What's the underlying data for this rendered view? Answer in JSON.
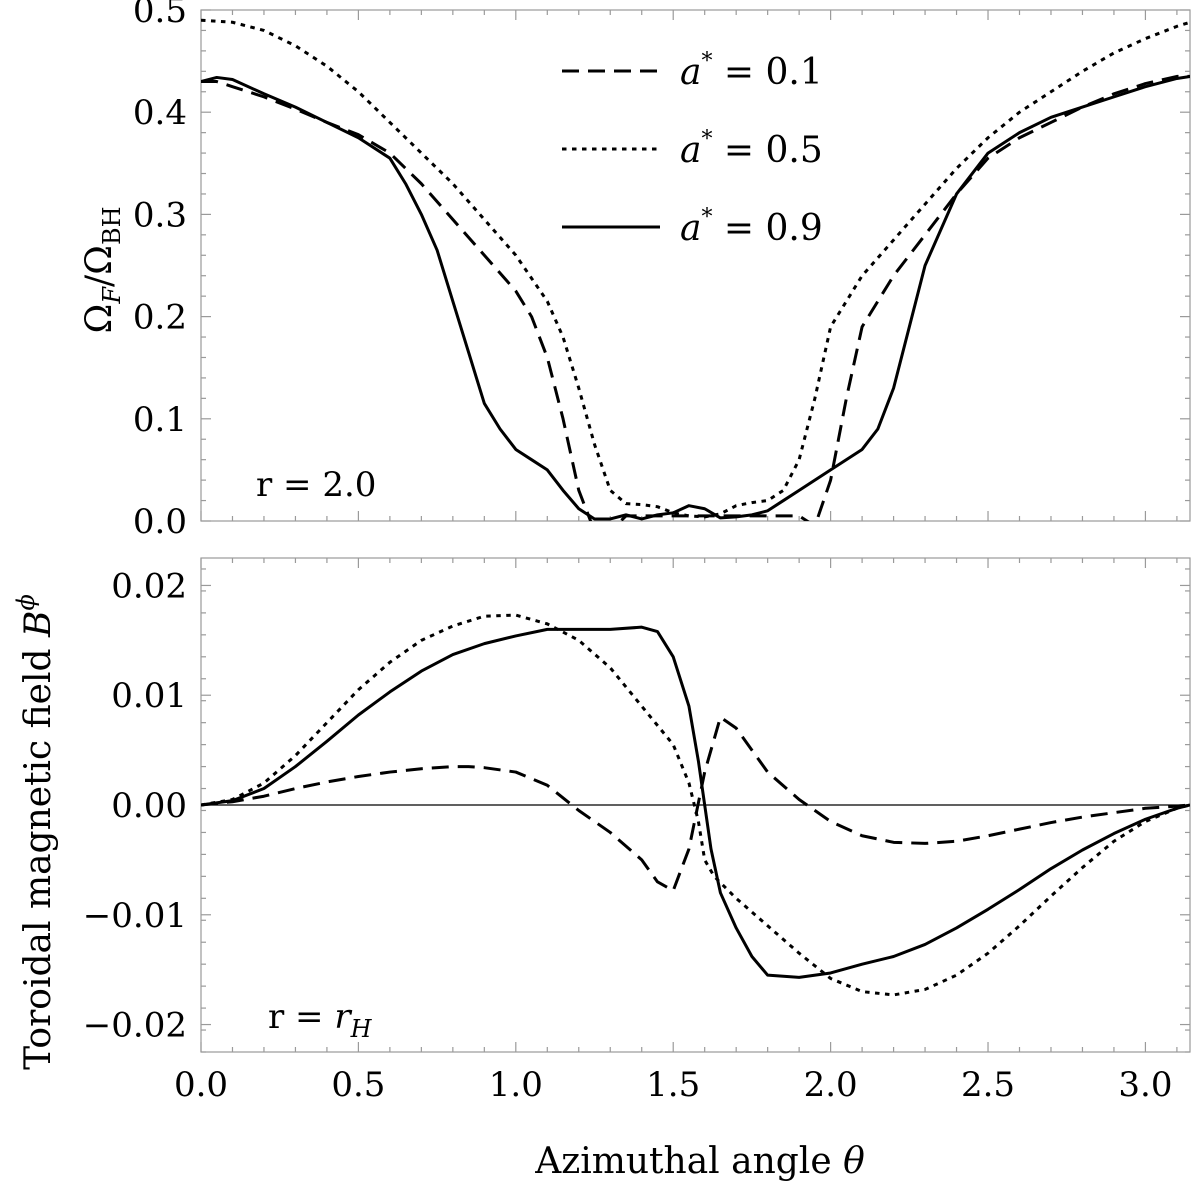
{
  "chart_data": [
    {
      "type": "line",
      "panel": "top",
      "title": "",
      "xlabel": "",
      "ylabel": "Ω_F/Ω_BH",
      "ylabel_main": "Ω",
      "ylabel_sub1": "F",
      "ylabel_slash": "/Ω",
      "ylabel_sub2": "BH",
      "xlim": [
        0,
        3.1416
      ],
      "ylim": [
        0,
        0.5
      ],
      "x_ticks": [
        0.0,
        0.5,
        1.0,
        1.5,
        2.0,
        2.5,
        3.0
      ],
      "y_ticks": [
        0.0,
        0.1,
        0.2,
        0.3,
        0.4,
        0.5
      ],
      "y_tick_labels": [
        "0.0",
        "0.1",
        "0.2",
        "0.3",
        "0.4",
        "0.5"
      ],
      "annotation": "r = 2.0",
      "legend": {
        "location": "top-center"
      },
      "series": [
        {
          "name": "a* = 0.1",
          "label_prefix": "a",
          "label_sup": "*",
          "label_value": " = 0.1",
          "style": "dashed",
          "x": [
            0,
            0.05,
            0.1,
            0.2,
            0.3,
            0.4,
            0.5,
            0.6,
            0.7,
            0.8,
            0.9,
            1.0,
            1.05,
            1.1,
            1.15,
            1.2,
            1.25,
            1.3,
            1.35,
            1.4,
            1.5,
            1.6,
            1.7,
            1.8,
            1.85,
            1.9,
            1.95,
            2.0,
            2.05,
            2.1,
            2.2,
            2.3,
            2.4,
            2.5,
            2.6,
            2.7,
            2.8,
            2.9,
            3.0,
            3.1,
            3.1416
          ],
          "y": [
            0.43,
            0.43,
            0.425,
            0.415,
            0.403,
            0.39,
            0.378,
            0.36,
            0.33,
            0.295,
            0.26,
            0.225,
            0.2,
            0.16,
            0.1,
            0.03,
            -0.01,
            -0.01,
            0.005,
            0.005,
            0.005,
            0.005,
            0.005,
            0.005,
            0.005,
            0.005,
            -0.005,
            0.04,
            0.12,
            0.19,
            0.24,
            0.28,
            0.32,
            0.355,
            0.375,
            0.39,
            0.405,
            0.418,
            0.428,
            0.435,
            0.435
          ]
        },
        {
          "name": "a* = 0.5",
          "label_prefix": "a",
          "label_sup": "*",
          "label_value": " = 0.5",
          "style": "dotted",
          "x": [
            0,
            0.1,
            0.2,
            0.3,
            0.4,
            0.5,
            0.6,
            0.7,
            0.8,
            0.9,
            1.0,
            1.1,
            1.15,
            1.2,
            1.25,
            1.3,
            1.35,
            1.4,
            1.45,
            1.5,
            1.55,
            1.6,
            1.65,
            1.7,
            1.75,
            1.8,
            1.85,
            1.9,
            1.95,
            2.0,
            2.1,
            2.2,
            2.3,
            2.4,
            2.5,
            2.6,
            2.7,
            2.8,
            2.9,
            3.0,
            3.1,
            3.1416
          ],
          "y": [
            0.49,
            0.488,
            0.48,
            0.465,
            0.445,
            0.42,
            0.39,
            0.36,
            0.33,
            0.295,
            0.26,
            0.215,
            0.18,
            0.13,
            0.075,
            0.03,
            0.017,
            0.016,
            0.014,
            0.008,
            0.005,
            0.004,
            0.007,
            0.015,
            0.018,
            0.02,
            0.03,
            0.06,
            0.12,
            0.19,
            0.24,
            0.275,
            0.31,
            0.345,
            0.375,
            0.4,
            0.42,
            0.44,
            0.458,
            0.472,
            0.484,
            0.488
          ]
        },
        {
          "name": "a* = 0.9",
          "label_prefix": "a",
          "label_sup": "*",
          "label_value": " = 0.9",
          "style": "solid",
          "x": [
            0,
            0.05,
            0.1,
            0.2,
            0.3,
            0.4,
            0.5,
            0.6,
            0.65,
            0.7,
            0.75,
            0.8,
            0.85,
            0.9,
            0.95,
            1.0,
            1.05,
            1.1,
            1.15,
            1.2,
            1.25,
            1.3,
            1.35,
            1.4,
            1.45,
            1.5,
            1.55,
            1.6,
            1.65,
            1.7,
            1.75,
            1.8,
            1.85,
            1.9,
            2.0,
            2.1,
            2.15,
            2.2,
            2.25,
            2.3,
            2.4,
            2.5,
            2.6,
            2.7,
            2.8,
            2.9,
            3.0,
            3.1,
            3.1416
          ],
          "y": [
            0.43,
            0.434,
            0.432,
            0.418,
            0.405,
            0.39,
            0.375,
            0.355,
            0.33,
            0.3,
            0.265,
            0.215,
            0.165,
            0.115,
            0.09,
            0.07,
            0.06,
            0.05,
            0.03,
            0.012,
            0.002,
            0.002,
            0.006,
            0.002,
            0.006,
            0.008,
            0.015,
            0.012,
            0.003,
            0.004,
            0.006,
            0.01,
            0.02,
            0.03,
            0.05,
            0.07,
            0.09,
            0.13,
            0.19,
            0.25,
            0.32,
            0.36,
            0.38,
            0.395,
            0.405,
            0.415,
            0.425,
            0.433,
            0.435
          ]
        }
      ]
    },
    {
      "type": "line",
      "panel": "bottom",
      "title": "",
      "xlabel": "Azimuthal angle θ",
      "xlabel_text": "Azimuthal angle ",
      "xlabel_symbol": "θ",
      "ylabel": "Toroidal magnetic field B^ϕ",
      "ylabel_text": "Toroidal magnetic field ",
      "ylabel_symbol": "B",
      "ylabel_sup": "ϕ",
      "xlim": [
        0,
        3.1416
      ],
      "ylim": [
        -0.0225,
        0.0225
      ],
      "x_ticks": [
        0.0,
        0.5,
        1.0,
        1.5,
        2.0,
        2.5,
        3.0
      ],
      "x_tick_labels": [
        "0.0",
        "0.5",
        "1.0",
        "1.5",
        "2.0",
        "2.5",
        "3.0"
      ],
      "y_ticks": [
        -0.02,
        -0.01,
        0.0,
        0.01,
        0.02
      ],
      "y_tick_labels": [
        "−0.02",
        "−0.01",
        "0.00",
        "0.01",
        "0.02"
      ],
      "zero_line": true,
      "annotation": "r = r_H",
      "annotation_text": "r = ",
      "annotation_symbol": "r",
      "annotation_sub": "H",
      "series": [
        {
          "name": "a* = 0.1",
          "style": "dashed",
          "x": [
            0,
            0.1,
            0.2,
            0.3,
            0.4,
            0.5,
            0.6,
            0.7,
            0.8,
            0.85,
            0.9,
            1.0,
            1.1,
            1.2,
            1.3,
            1.4,
            1.45,
            1.5,
            1.55,
            1.6,
            1.65,
            1.7,
            1.8,
            1.9,
            2.0,
            2.1,
            2.2,
            2.3,
            2.4,
            2.5,
            2.6,
            2.7,
            2.8,
            2.9,
            3.0,
            3.1,
            3.1416
          ],
          "y": [
            0,
            0.0003,
            0.0008,
            0.0015,
            0.0021,
            0.0026,
            0.003,
            0.0033,
            0.0035,
            0.0035,
            0.0034,
            0.003,
            0.0018,
            -0.0005,
            -0.0025,
            -0.005,
            -0.007,
            -0.0078,
            -0.004,
            0.003,
            0.008,
            0.007,
            0.003,
            0.0005,
            -0.0015,
            -0.0028,
            -0.0034,
            -0.0035,
            -0.0033,
            -0.0028,
            -0.0022,
            -0.0016,
            -0.0011,
            -0.0007,
            -0.0003,
            -0.0001,
            0
          ]
        },
        {
          "name": "a* = 0.5",
          "style": "dotted",
          "x": [
            0,
            0.1,
            0.2,
            0.3,
            0.4,
            0.5,
            0.6,
            0.7,
            0.8,
            0.9,
            1.0,
            1.1,
            1.2,
            1.3,
            1.4,
            1.5,
            1.55,
            1.58,
            1.6,
            1.63,
            1.7,
            1.8,
            1.9,
            2.0,
            2.1,
            2.2,
            2.3,
            2.4,
            2.5,
            2.6,
            2.7,
            2.8,
            2.9,
            3.0,
            3.1,
            3.1416
          ],
          "y": [
            0,
            0.0005,
            0.002,
            0.0045,
            0.0075,
            0.0105,
            0.013,
            0.015,
            0.0163,
            0.0172,
            0.0173,
            0.0165,
            0.015,
            0.0125,
            0.009,
            0.0055,
            0.002,
            -0.0015,
            -0.005,
            -0.0065,
            -0.0085,
            -0.011,
            -0.0135,
            -0.0158,
            -0.017,
            -0.0173,
            -0.0168,
            -0.0155,
            -0.0135,
            -0.011,
            -0.0083,
            -0.0057,
            -0.0033,
            -0.0015,
            -0.0003,
            0
          ]
        },
        {
          "name": "a* = 0.9",
          "style": "solid",
          "x": [
            0,
            0.1,
            0.2,
            0.3,
            0.4,
            0.5,
            0.6,
            0.7,
            0.8,
            0.9,
            1.0,
            1.1,
            1.2,
            1.3,
            1.4,
            1.45,
            1.5,
            1.55,
            1.58,
            1.6,
            1.62,
            1.65,
            1.7,
            1.75,
            1.8,
            1.9,
            2.0,
            2.1,
            2.2,
            2.3,
            2.4,
            2.5,
            2.6,
            2.7,
            2.8,
            2.9,
            3.0,
            3.1,
            3.1416
          ],
          "y": [
            0,
            0.0004,
            0.0015,
            0.0035,
            0.0058,
            0.0082,
            0.0103,
            0.0122,
            0.0137,
            0.0147,
            0.0154,
            0.016,
            0.016,
            0.016,
            0.0162,
            0.0158,
            0.0135,
            0.009,
            0.004,
            0.0,
            -0.004,
            -0.008,
            -0.0112,
            -0.0138,
            -0.0155,
            -0.0157,
            -0.0153,
            -0.0145,
            -0.0138,
            -0.0127,
            -0.0112,
            -0.0095,
            -0.0077,
            -0.0058,
            -0.0041,
            -0.0026,
            -0.0013,
            -0.0003,
            0
          ]
        }
      ]
    }
  ]
}
